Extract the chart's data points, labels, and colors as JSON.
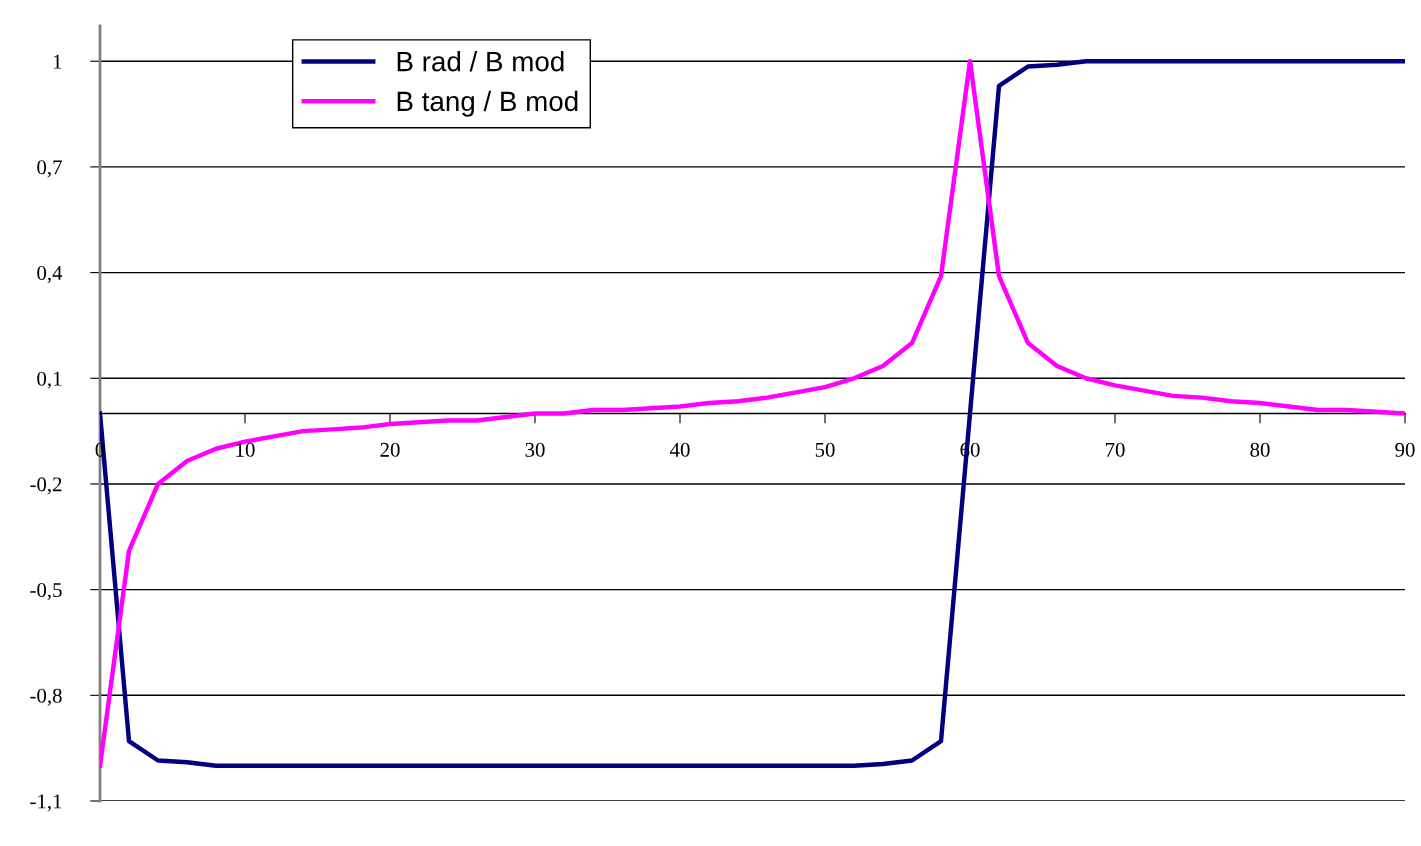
{
  "chart_data": {
    "type": "line",
    "x": [
      0,
      2,
      4,
      6,
      8,
      10,
      12,
      14,
      16,
      18,
      20,
      22,
      24,
      26,
      28,
      30,
      32,
      34,
      36,
      38,
      40,
      42,
      44,
      46,
      48,
      50,
      52,
      54,
      56,
      58,
      60,
      62,
      64,
      66,
      68,
      70,
      72,
      74,
      76,
      78,
      80,
      82,
      84,
      86,
      88,
      90
    ],
    "series": [
      {
        "name": "B rad / B mod",
        "color": "#000080",
        "values": [
          0,
          -0.93,
          -0.985,
          -0.99,
          -1,
          -1,
          -1,
          -1,
          -1,
          -1,
          -1,
          -1,
          -1,
          -1,
          -1,
          -1,
          -1,
          -1,
          -1,
          -1,
          -1,
          -1,
          -1,
          -1,
          -1,
          -1,
          -1,
          -0.995,
          -0.985,
          -0.93,
          0,
          0.93,
          0.985,
          0.99,
          1,
          1,
          1,
          1,
          1,
          1,
          1,
          1,
          1,
          1,
          1,
          1
        ]
      },
      {
        "name": "B tang / B mod",
        "color": "#ff00ff",
        "values": [
          -1,
          -0.39,
          -0.2,
          -0.135,
          -0.1,
          -0.08,
          -0.065,
          -0.05,
          -0.045,
          -0.04,
          -0.03,
          -0.025,
          -0.02,
          -0.02,
          -0.01,
          0,
          0,
          0.01,
          0.01,
          0.015,
          0.02,
          0.03,
          0.035,
          0.045,
          0.06,
          0.075,
          0.1,
          0.135,
          0.2,
          0.39,
          1,
          0.39,
          0.2,
          0.135,
          0.1,
          0.08,
          0.065,
          0.05,
          0.045,
          0.035,
          0.03,
          0.02,
          0.01,
          0.01,
          0.005,
          0
        ]
      }
    ],
    "xlim": [
      0,
      90
    ],
    "xticks": [
      0,
      10,
      20,
      30,
      40,
      50,
      60,
      70,
      80,
      90
    ],
    "ylim": [
      -1.1,
      1.1
    ],
    "yticks": [
      {
        "value": -1.1,
        "label": "-1,1"
      },
      {
        "value": -0.8,
        "label": "-0,8"
      },
      {
        "value": -0.5,
        "label": "-0,5"
      },
      {
        "value": -0.2,
        "label": "-0,2"
      },
      {
        "value": 0.1,
        "label": "0,1"
      },
      {
        "value": 0.4,
        "label": "0,4"
      },
      {
        "value": 0.7,
        "label": "0,7"
      },
      {
        "value": 1,
        "label": "1"
      }
    ],
    "grid": "y",
    "legend": "top left",
    "marker": "none",
    "line_style": "solid"
  }
}
